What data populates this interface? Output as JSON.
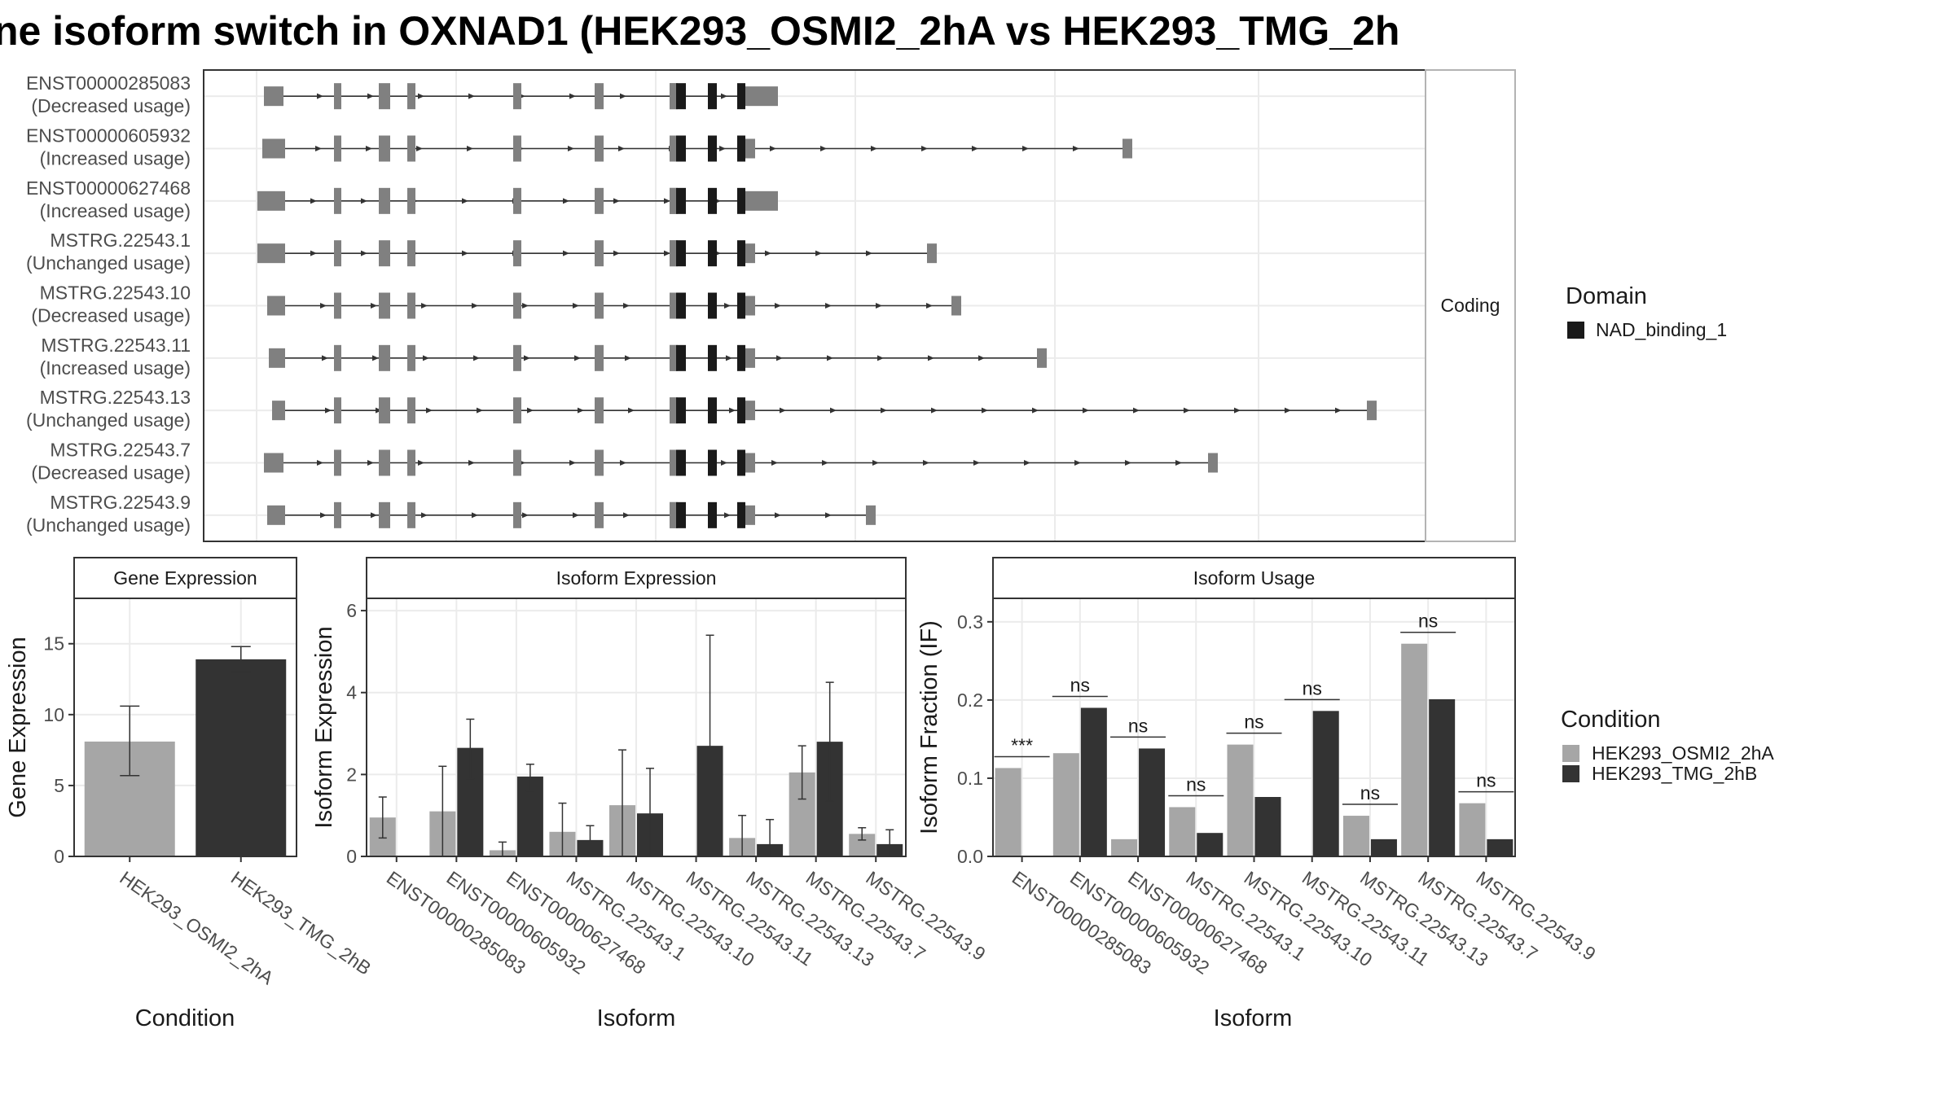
{
  "title": "ne isoform switch in OXNAD1 (HEK293_OSMI2_2hA vs HEK293_TMG_2h",
  "colors": {
    "exon": "#808080",
    "domain": "#1a1a1a",
    "cond_a": "#a6a6a6",
    "cond_b": "#333333",
    "grid": "#ebebeb",
    "strip_bg": "#ffffff",
    "panel_border": "#333333"
  },
  "legends": {
    "domain_title": "Domain",
    "domain_items": [
      "NAD_binding_1"
    ],
    "condition_title": "Condition",
    "condition_items": [
      "HEK293_OSMI2_2hA",
      "HEK293_TMG_2hB"
    ]
  },
  "chart_data": [
    {
      "type": "gene-structure",
      "facet_label": "Coding",
      "transcripts": [
        {
          "id": "ENST00000285083",
          "usage": "(Decreased usage)",
          "end_rel": 0.47
        },
        {
          "id": "ENST00000605932",
          "usage": "(Increased usage)",
          "end_rel": 0.76
        },
        {
          "id": "ENST00000627468",
          "usage": "(Increased usage)",
          "end_rel": 0.47
        },
        {
          "id": "MSTRG.22543.1",
          "usage": "(Unchanged usage)",
          "end_rel": 0.6
        },
        {
          "id": "MSTRG.22543.10",
          "usage": "(Decreased usage)",
          "end_rel": 0.62
        },
        {
          "id": "MSTRG.22543.11",
          "usage": "(Increased usage)",
          "end_rel": 0.69
        },
        {
          "id": "MSTRG.22543.13",
          "usage": "(Unchanged usage)",
          "end_rel": 0.96
        },
        {
          "id": "MSTRG.22543.7",
          "usage": "(Decreased usage)",
          "end_rel": 0.83
        },
        {
          "id": "MSTRG.22543.9",
          "usage": "(Unchanged usage)",
          "end_rel": 0.55
        }
      ]
    },
    {
      "type": "bar",
      "strip": "Gene Expression",
      "xlabel": "Condition",
      "ylabel": "Gene Expression",
      "categories": [
        "HEK293_OSMI2_2hA",
        "HEK293_TMG_2hB"
      ],
      "values": [
        8.1,
        13.9
      ],
      "err_low": [
        5.7,
        13.0
      ],
      "err_high": [
        10.6,
        14.8
      ],
      "ylim": [
        0,
        18.2
      ],
      "yticks": [
        0,
        5,
        10,
        15
      ]
    },
    {
      "type": "bar",
      "strip": "Isoform Expression",
      "xlabel": "Isoform",
      "ylabel": "Isoform Expression",
      "categories": [
        "ENST00000285083",
        "ENST00000605932",
        "ENST00000627468",
        "MSTRG.22543.1",
        "MSTRG.22543.10",
        "MSTRG.22543.11",
        "MSTRG.22543.13",
        "MSTRG.22543.7",
        "MSTRG.22543.9"
      ],
      "series": [
        {
          "name": "HEK293_OSMI2_2hA",
          "values": [
            0.95,
            1.1,
            0.15,
            0.6,
            1.25,
            0.0,
            0.45,
            2.05,
            0.55
          ],
          "err_low": [
            0.45,
            0.0,
            0.0,
            0.0,
            0.0,
            0.0,
            0.0,
            1.4,
            0.4
          ],
          "err_high": [
            1.45,
            2.2,
            0.35,
            1.3,
            2.6,
            0.0,
            1.0,
            2.7,
            0.7
          ]
        },
        {
          "name": "HEK293_TMG_2hB",
          "values": [
            0.0,
            2.65,
            1.95,
            0.4,
            1.05,
            2.7,
            0.3,
            2.8,
            0.3
          ],
          "err_low": [
            0.0,
            1.9,
            1.6,
            0.0,
            0.0,
            0.0,
            0.0,
            1.35,
            0.0
          ],
          "err_high": [
            0.0,
            3.35,
            2.25,
            0.75,
            2.15,
            5.4,
            0.9,
            4.25,
            0.65
          ]
        }
      ],
      "ylim": [
        0,
        6.3
      ],
      "yticks": [
        0,
        2,
        4,
        6
      ]
    },
    {
      "type": "bar",
      "strip": "Isoform Usage",
      "xlabel": "Isoform",
      "ylabel": "Isoform Fraction (IF)",
      "categories": [
        "ENST00000285083",
        "ENST00000605932",
        "ENST00000627468",
        "MSTRG.22543.1",
        "MSTRG.22543.10",
        "MSTRG.22543.11",
        "MSTRG.22543.13",
        "MSTRG.22543.7",
        "MSTRG.22543.9"
      ],
      "series": [
        {
          "name": "HEK293_OSMI2_2hA",
          "values": [
            0.113,
            0.132,
            0.022,
            0.063,
            0.143,
            0.0,
            0.052,
            0.272,
            0.068
          ]
        },
        {
          "name": "HEK293_TMG_2hB",
          "values": [
            0.0,
            0.19,
            0.138,
            0.03,
            0.076,
            0.186,
            0.022,
            0.201,
            0.022
          ]
        }
      ],
      "significance": [
        "***",
        "ns",
        "ns",
        "ns",
        "ns",
        "ns",
        "ns",
        "ns",
        "ns"
      ],
      "ylim": [
        0,
        0.33
      ],
      "yticks": [
        "0.0",
        "0.1",
        "0.2",
        "0.3"
      ]
    }
  ]
}
